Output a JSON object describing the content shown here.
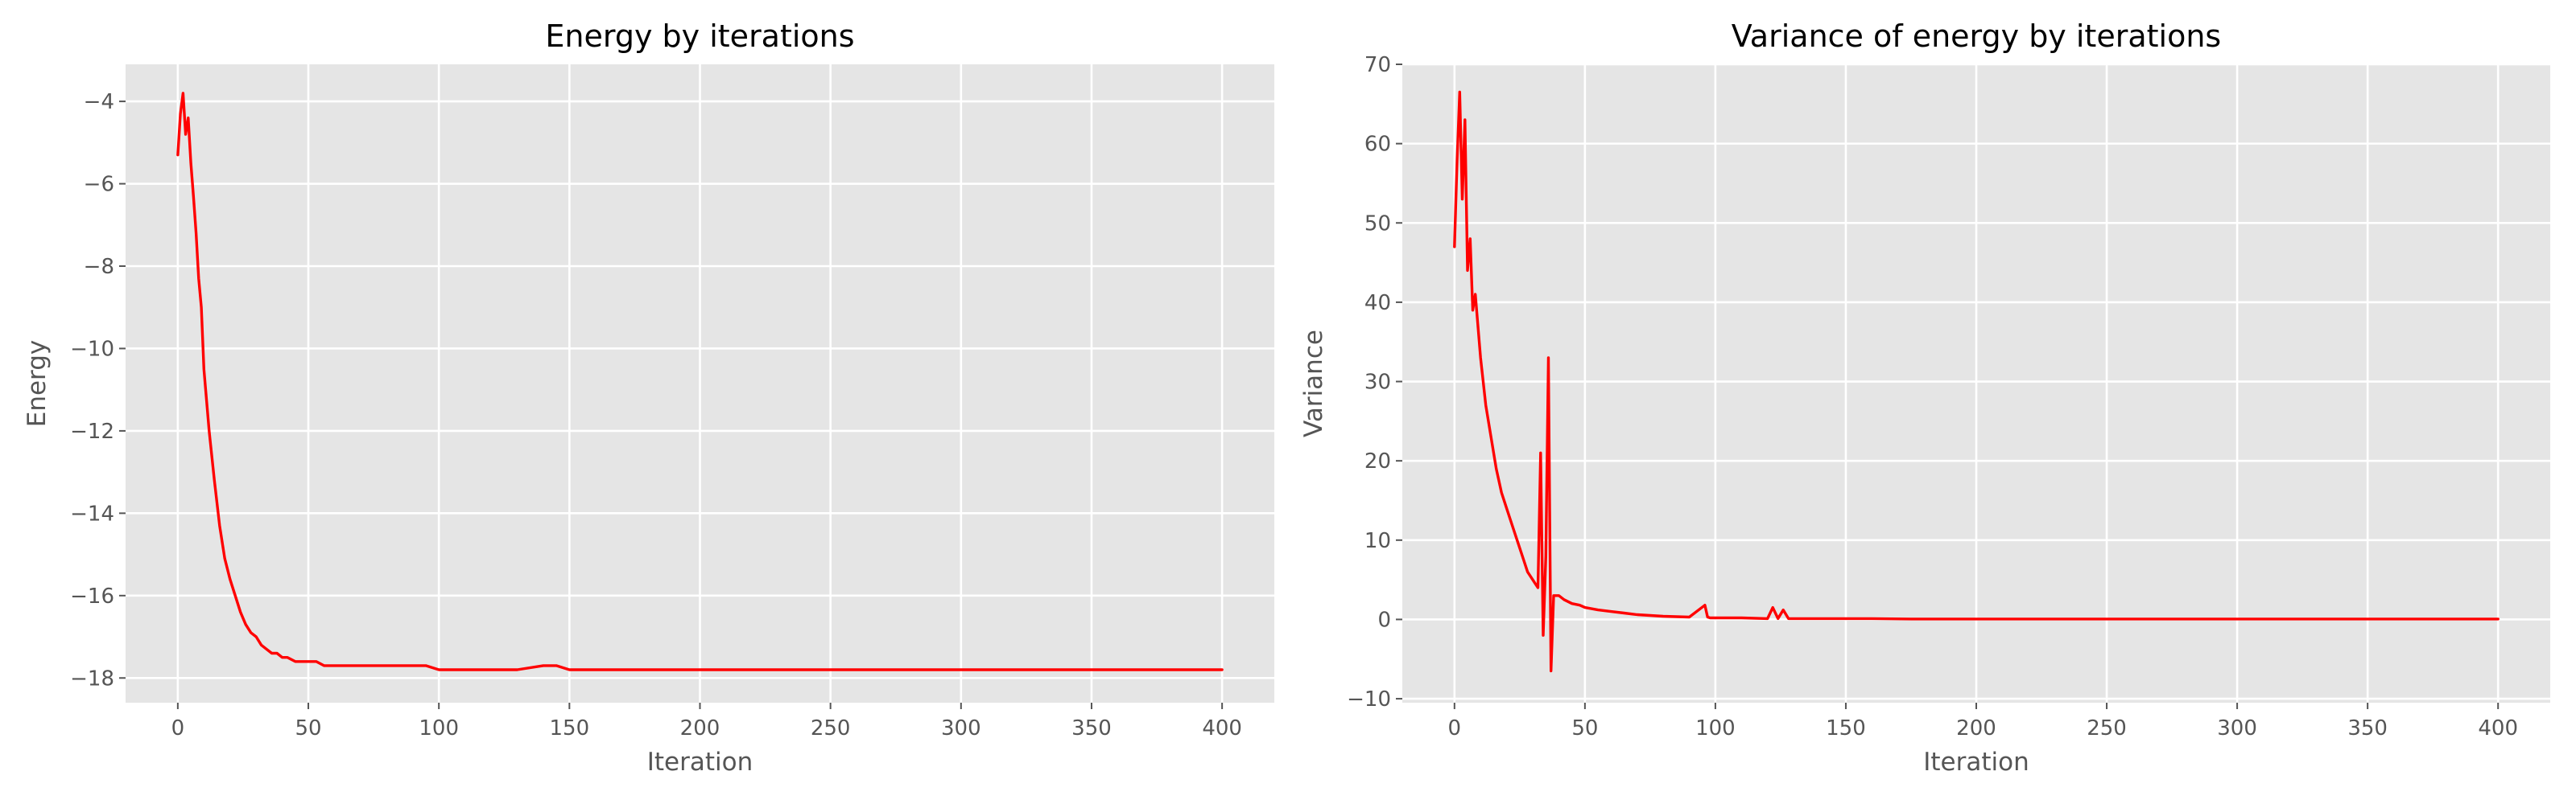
{
  "chart_data": [
    {
      "type": "line",
      "title": "Energy by iterations",
      "xlabel": "Iteration",
      "ylabel": "Energy",
      "xlim": [
        -20,
        420
      ],
      "ylim": [
        -18.6,
        -3.1
      ],
      "xticks": [
        0,
        50,
        100,
        150,
        200,
        250,
        300,
        350,
        400
      ],
      "xtick_labels": [
        "0",
        "50",
        "100",
        "150",
        "200",
        "250",
        "300",
        "350",
        "400"
      ],
      "yticks": [
        -18,
        -16,
        -14,
        -12,
        -10,
        -8,
        -6,
        -4
      ],
      "ytick_labels": [
        "−18",
        "−16",
        "−14",
        "−12",
        "−10",
        "−8",
        "−6",
        "−4"
      ],
      "grid": true,
      "series": [
        {
          "color": "#ff0000",
          "x": [
            0,
            1,
            2,
            3,
            4,
            5,
            6,
            7,
            8,
            9,
            10,
            12,
            14,
            16,
            18,
            20,
            22,
            24,
            26,
            28,
            30,
            32,
            34,
            36,
            38,
            40,
            42,
            45,
            48,
            50,
            53,
            56,
            60,
            65,
            70,
            75,
            80,
            85,
            90,
            95,
            100,
            110,
            120,
            130,
            140,
            145,
            150,
            160,
            170,
            180,
            190,
            200,
            210,
            220,
            230,
            240,
            250,
            255,
            260,
            270,
            280,
            290,
            300,
            310,
            320,
            330,
            340,
            350,
            360,
            370,
            380,
            390,
            400
          ],
          "y": [
            -5.3,
            -4.3,
            -3.8,
            -4.8,
            -4.4,
            -5.5,
            -6.3,
            -7.2,
            -8.3,
            -9.0,
            -10.5,
            -12.0,
            -13.2,
            -14.3,
            -15.1,
            -15.6,
            -16.0,
            -16.4,
            -16.7,
            -16.9,
            -17.0,
            -17.2,
            -17.3,
            -17.4,
            -17.4,
            -17.5,
            -17.5,
            -17.6,
            -17.6,
            -17.6,
            -17.6,
            -17.7,
            -17.7,
            -17.7,
            -17.7,
            -17.7,
            -17.7,
            -17.7,
            -17.7,
            -17.7,
            -17.8,
            -17.8,
            -17.8,
            -17.8,
            -17.7,
            -17.7,
            -17.8,
            -17.8,
            -17.8,
            -17.8,
            -17.8,
            -17.8,
            -17.8,
            -17.8,
            -17.8,
            -17.8,
            -17.8,
            -17.8,
            -17.8,
            -17.8,
            -17.8,
            -17.8,
            -17.8,
            -17.8,
            -17.8,
            -17.8,
            -17.8,
            -17.8,
            -17.8,
            -17.8,
            -17.8,
            -17.8,
            -17.8
          ]
        }
      ]
    },
    {
      "type": "line",
      "title": "Variance of energy by iterations",
      "xlabel": "Iteration",
      "ylabel": "Variance",
      "xlim": [
        -20,
        420
      ],
      "ylim": [
        -10.5,
        70
      ],
      "xticks": [
        0,
        50,
        100,
        150,
        200,
        250,
        300,
        350,
        400
      ],
      "xtick_labels": [
        "0",
        "50",
        "100",
        "150",
        "200",
        "250",
        "300",
        "350",
        "400"
      ],
      "yticks": [
        -10,
        0,
        10,
        20,
        30,
        40,
        50,
        60,
        70
      ],
      "ytick_labels": [
        "−10",
        "0",
        "10",
        "20",
        "30",
        "40",
        "50",
        "60",
        "70"
      ],
      "grid": true,
      "series": [
        {
          "color": "#ff0000",
          "x": [
            0,
            1,
            2,
            3,
            4,
            5,
            6,
            7,
            8,
            10,
            12,
            14,
            16,
            18,
            20,
            22,
            24,
            26,
            28,
            30,
            32,
            33,
            34,
            35,
            36,
            37,
            38,
            40,
            42,
            45,
            48,
            50,
            55,
            60,
            65,
            70,
            80,
            90,
            96,
            97,
            98,
            100,
            110,
            120,
            122,
            124,
            126,
            128,
            130,
            140,
            150,
            160,
            175,
            200,
            225,
            250,
            275,
            300,
            325,
            350,
            375,
            400
          ],
          "y": [
            47,
            58,
            66.5,
            53,
            63,
            44,
            48,
            39,
            41,
            33,
            27,
            23,
            19,
            16,
            14,
            12,
            10,
            8,
            6,
            5,
            4,
            21,
            -2,
            8,
            33,
            -6.5,
            3,
            3,
            2.5,
            2,
            1.8,
            1.5,
            1.2,
            1.0,
            0.8,
            0.6,
            0.4,
            0.3,
            1.8,
            0.3,
            0.2,
            0.2,
            0.2,
            0.1,
            1.5,
            0.1,
            1.2,
            0.1,
            0.1,
            0.1,
            0.1,
            0.1,
            0.05,
            0.05,
            0.05,
            0.05,
            0.05,
            0.05,
            0.05,
            0.05,
            0.05,
            0.05
          ]
        }
      ]
    }
  ]
}
